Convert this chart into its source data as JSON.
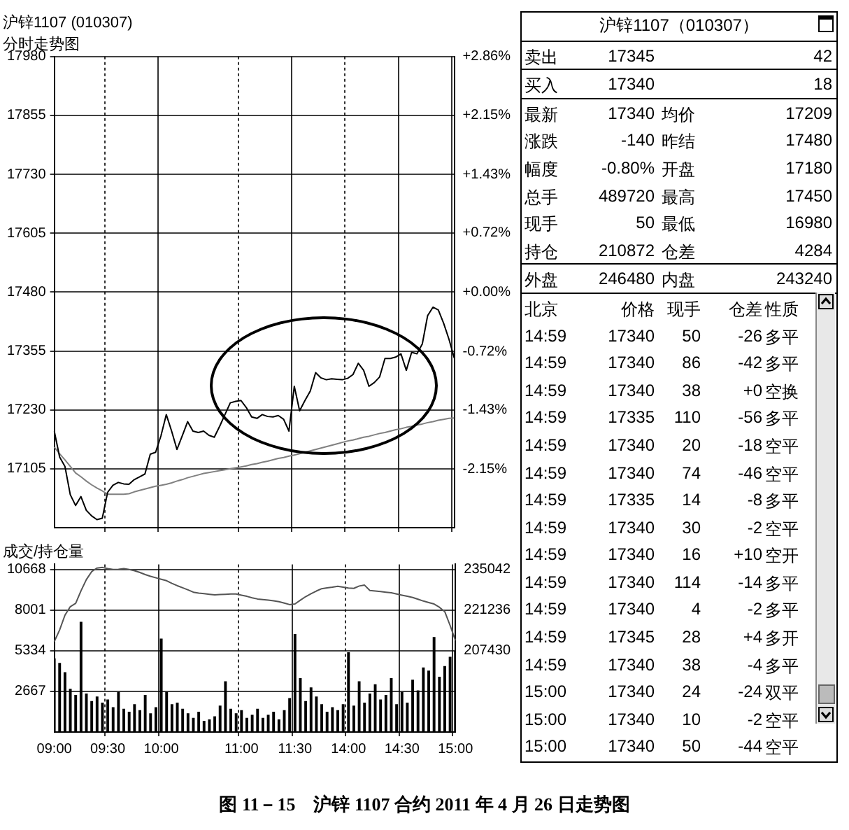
{
  "chart_data": [
    {
      "type": "line",
      "title": "沪锌1107 (010307)",
      "subtitle": "分时走势图",
      "categories": [
        null,
        null,
        null,
        null,
        null,
        null,
        null,
        null,
        null,
        null,
        null,
        null,
        null,
        null,
        null,
        null,
        null,
        null,
        null,
        null,
        null,
        null,
        null,
        null,
        null,
        null,
        null,
        null,
        null,
        null,
        null,
        null,
        null,
        null,
        null,
        null,
        null,
        null,
        null,
        null,
        null,
        null,
        null,
        null,
        null,
        null,
        null,
        null,
        null,
        null,
        null,
        null,
        null,
        null,
        null,
        null,
        null,
        null,
        null,
        null,
        null,
        null,
        null,
        null,
        null,
        null,
        null,
        null,
        null,
        null,
        null,
        null,
        null,
        null,
        null,
        null
      ],
      "ylim": [
        16980,
        17980
      ],
      "yticks": [
        17105,
        17230,
        17355,
        17480,
        17605,
        17730,
        17855,
        17980
      ],
      "y2lim": [
        -2.86,
        2.86
      ],
      "y2ticks": [
        {
          "value": 2.86,
          "label": "+2.86%"
        },
        {
          "value": 2.15,
          "label": "+2.15%"
        },
        {
          "value": 1.43,
          "label": "+1.43%"
        },
        {
          "value": 0.72,
          "label": "+0.72%"
        },
        {
          "value": 0,
          "label": "+0.00%"
        },
        {
          "value": -0.72,
          "label": "-0.72%"
        },
        {
          "value": -1.43,
          "label": "-1.43%"
        },
        {
          "value": -2.15,
          "label": "-2.15%"
        }
      ],
      "grid": true,
      "tick_labels": "y",
      "series": [
        {
          "color": "#000000",
          "values": [
            17185,
            17130,
            17110,
            17050,
            17027,
            17046,
            17017,
            17005,
            16997,
            17000,
            17055,
            17070,
            17076,
            17073,
            17072,
            17082,
            17088,
            17094,
            17136,
            17140,
            17175,
            17220,
            17185,
            17146,
            17175,
            17205,
            17185,
            17182,
            17185,
            17176,
            17172,
            17195,
            17220,
            17245,
            17248,
            17250,
            17235,
            17215,
            17212,
            17220,
            17216,
            17215,
            17218,
            17210,
            17185,
            17280,
            17228,
            17250,
            17270,
            17309,
            17298,
            17294,
            17296,
            17295,
            17294,
            17297,
            17305,
            17329,
            17314,
            17280,
            17288,
            17300,
            17339,
            17339,
            17342,
            17349,
            17314,
            17352,
            17349,
            17370,
            17430,
            17448,
            17442,
            17414,
            17380,
            17340
          ]
        },
        {
          "color": "#808080",
          "values": [
            17151,
            17137,
            17124,
            17110,
            17096,
            17088,
            17079,
            17071,
            17064,
            17058,
            17051,
            17051,
            17051,
            17051,
            17052,
            17056,
            17059,
            17062,
            17065,
            17068,
            17070,
            17072,
            17075,
            17079,
            17082,
            17086,
            17089,
            17092,
            17095,
            17097,
            17099,
            17101,
            17103,
            17105,
            17107,
            17109,
            17111,
            17114,
            17116,
            17119,
            17121,
            17124,
            17127,
            17129,
            17132,
            17134,
            17137,
            17140,
            17143,
            17146,
            17149,
            17152,
            17155,
            17158,
            17161,
            17164,
            17166,
            17169,
            17172,
            17174,
            17177,
            17180,
            17182,
            17185,
            17188,
            17190,
            17193,
            17195,
            17198,
            17200,
            17203,
            17205,
            17208,
            17210,
            17212,
            17213
          ]
        }
      ]
    },
    {
      "type": "bar",
      "title": "成交/持仓量",
      "categories": [
        "09:00",
        null,
        null,
        null,
        null,
        null,
        null,
        null,
        null,
        null,
        "09:30",
        null,
        null,
        null,
        null,
        null,
        null,
        null,
        null,
        null,
        "10:00",
        null,
        null,
        null,
        null,
        null,
        null,
        null,
        null,
        null,
        null,
        null,
        null,
        null,
        null,
        "11:00",
        null,
        null,
        null,
        null,
        null,
        null,
        null,
        null,
        null,
        "11:30",
        null,
        null,
        null,
        null,
        null,
        null,
        null,
        null,
        null,
        "14:00",
        null,
        null,
        null,
        null,
        null,
        null,
        null,
        null,
        null,
        "14:30",
        null,
        null,
        null,
        null,
        null,
        null,
        null,
        null,
        null,
        "15:00"
      ],
      "ylim": [
        0,
        11000
      ],
      "yticks": [
        2667,
        5334,
        8001,
        10668
      ],
      "y2lim": [
        179818,
        236761
      ],
      "y2ticks": [
        207430,
        221236,
        235042
      ],
      "grid": true,
      "series": [
        {
          "color": "#000000",
          "values": [
            4800,
            4500,
            3900,
            2800,
            2400,
            7200,
            2500,
            2000,
            2300,
            1900,
            2100,
            1600,
            2600,
            1500,
            1300,
            1800,
            1400,
            2400,
            1200,
            1600,
            6100,
            2600,
            1800,
            1900,
            1500,
            1200,
            900,
            1300,
            700,
            800,
            1000,
            1700,
            3300,
            1500,
            1200,
            1400,
            900,
            1100,
            1500,
            900,
            1100,
            1300,
            800,
            1400,
            2200,
            6400,
            3500,
            2000,
            2900,
            2300,
            1800,
            1300,
            1600,
            1400,
            1800,
            5200,
            1700,
            3300,
            1900,
            2500,
            3100,
            2100,
            2400,
            3500,
            1800,
            2600,
            1900,
            3400,
            2700,
            4200,
            4000,
            6200,
            3600,
            4300,
            4900,
            5300
          ]
        },
        {
          "type": "line",
          "axis": "y2",
          "color": "#555555",
          "values": [
            210500,
            214500,
            219500,
            222400,
            223500,
            227800,
            231600,
            234300,
            235500,
            235700,
            235300,
            235000,
            235100,
            235300,
            235000,
            234600,
            234000,
            233300,
            232700,
            232200,
            231700,
            231200,
            230300,
            229500,
            228800,
            228100,
            227300,
            227000,
            226800,
            226600,
            226400,
            226500,
            226600,
            226700,
            226700,
            226300,
            225900,
            225400,
            225000,
            224800,
            224600,
            224400,
            224100,
            223600,
            223100,
            223300,
            224600,
            225800,
            226800,
            227700,
            228500,
            228800,
            229000,
            229300,
            229000,
            228700,
            228600,
            229400,
            229700,
            227900,
            227700,
            227500,
            227300,
            227100,
            226700,
            226300,
            225900,
            225500,
            224900,
            224300,
            223800,
            223300,
            222200,
            220700,
            216000,
            210900
          ]
        }
      ]
    },
    {
      "type": "other",
      "title": "沪锌1107（010307）",
      "subtitle": "图 11－15　沪锌 1107 合约 2011 年 4 月 26 日走势图",
      "annotations": [
        "卖出\t17345\t\t42",
        "买入\t17340\t\t18",
        "最新\t17340\t均价\t17209",
        "涨跌\t-140\t昨结\t17480",
        "幅度\t-0.80%\t开盘\t17180",
        "总手\t489720\t最高\t17450",
        "现手\t50\t最低\t16980",
        "持仓\t210872\t仓差\t4284",
        "外盘\t246480\t内盘\t243240",
        "北京\t价格\t现手\t仓差\t性质",
        "14:59\t17340\t50\t-26\t多平",
        "14:59\t17340\t86\t-42\t多平",
        "14:59\t17340\t38\t+0\t空换",
        "14:59\t17335\t110\t-56\t多平",
        "14:59\t17340\t20\t-18\t空平",
        "14:59\t17340\t74\t-46\t空平",
        "14:59\t17335\t14\t-8\t多平",
        "14:59\t17340\t30\t-2\t空平",
        "14:59\t17340\t16\t+10\t空开",
        "14:59\t17340\t114\t-14\t多平",
        "14:59\t17340\t4\t-2\t多平",
        "14:59\t17345\t28\t+4\t多开",
        "14:59\t17340\t38\t-4\t多平",
        "15:00\t17340\t24\t-24\t双平",
        "15:00\t17340\t10\t-2\t空平",
        "15:00\t17340\t50\t-44\t空平"
      ]
    }
  ]
}
